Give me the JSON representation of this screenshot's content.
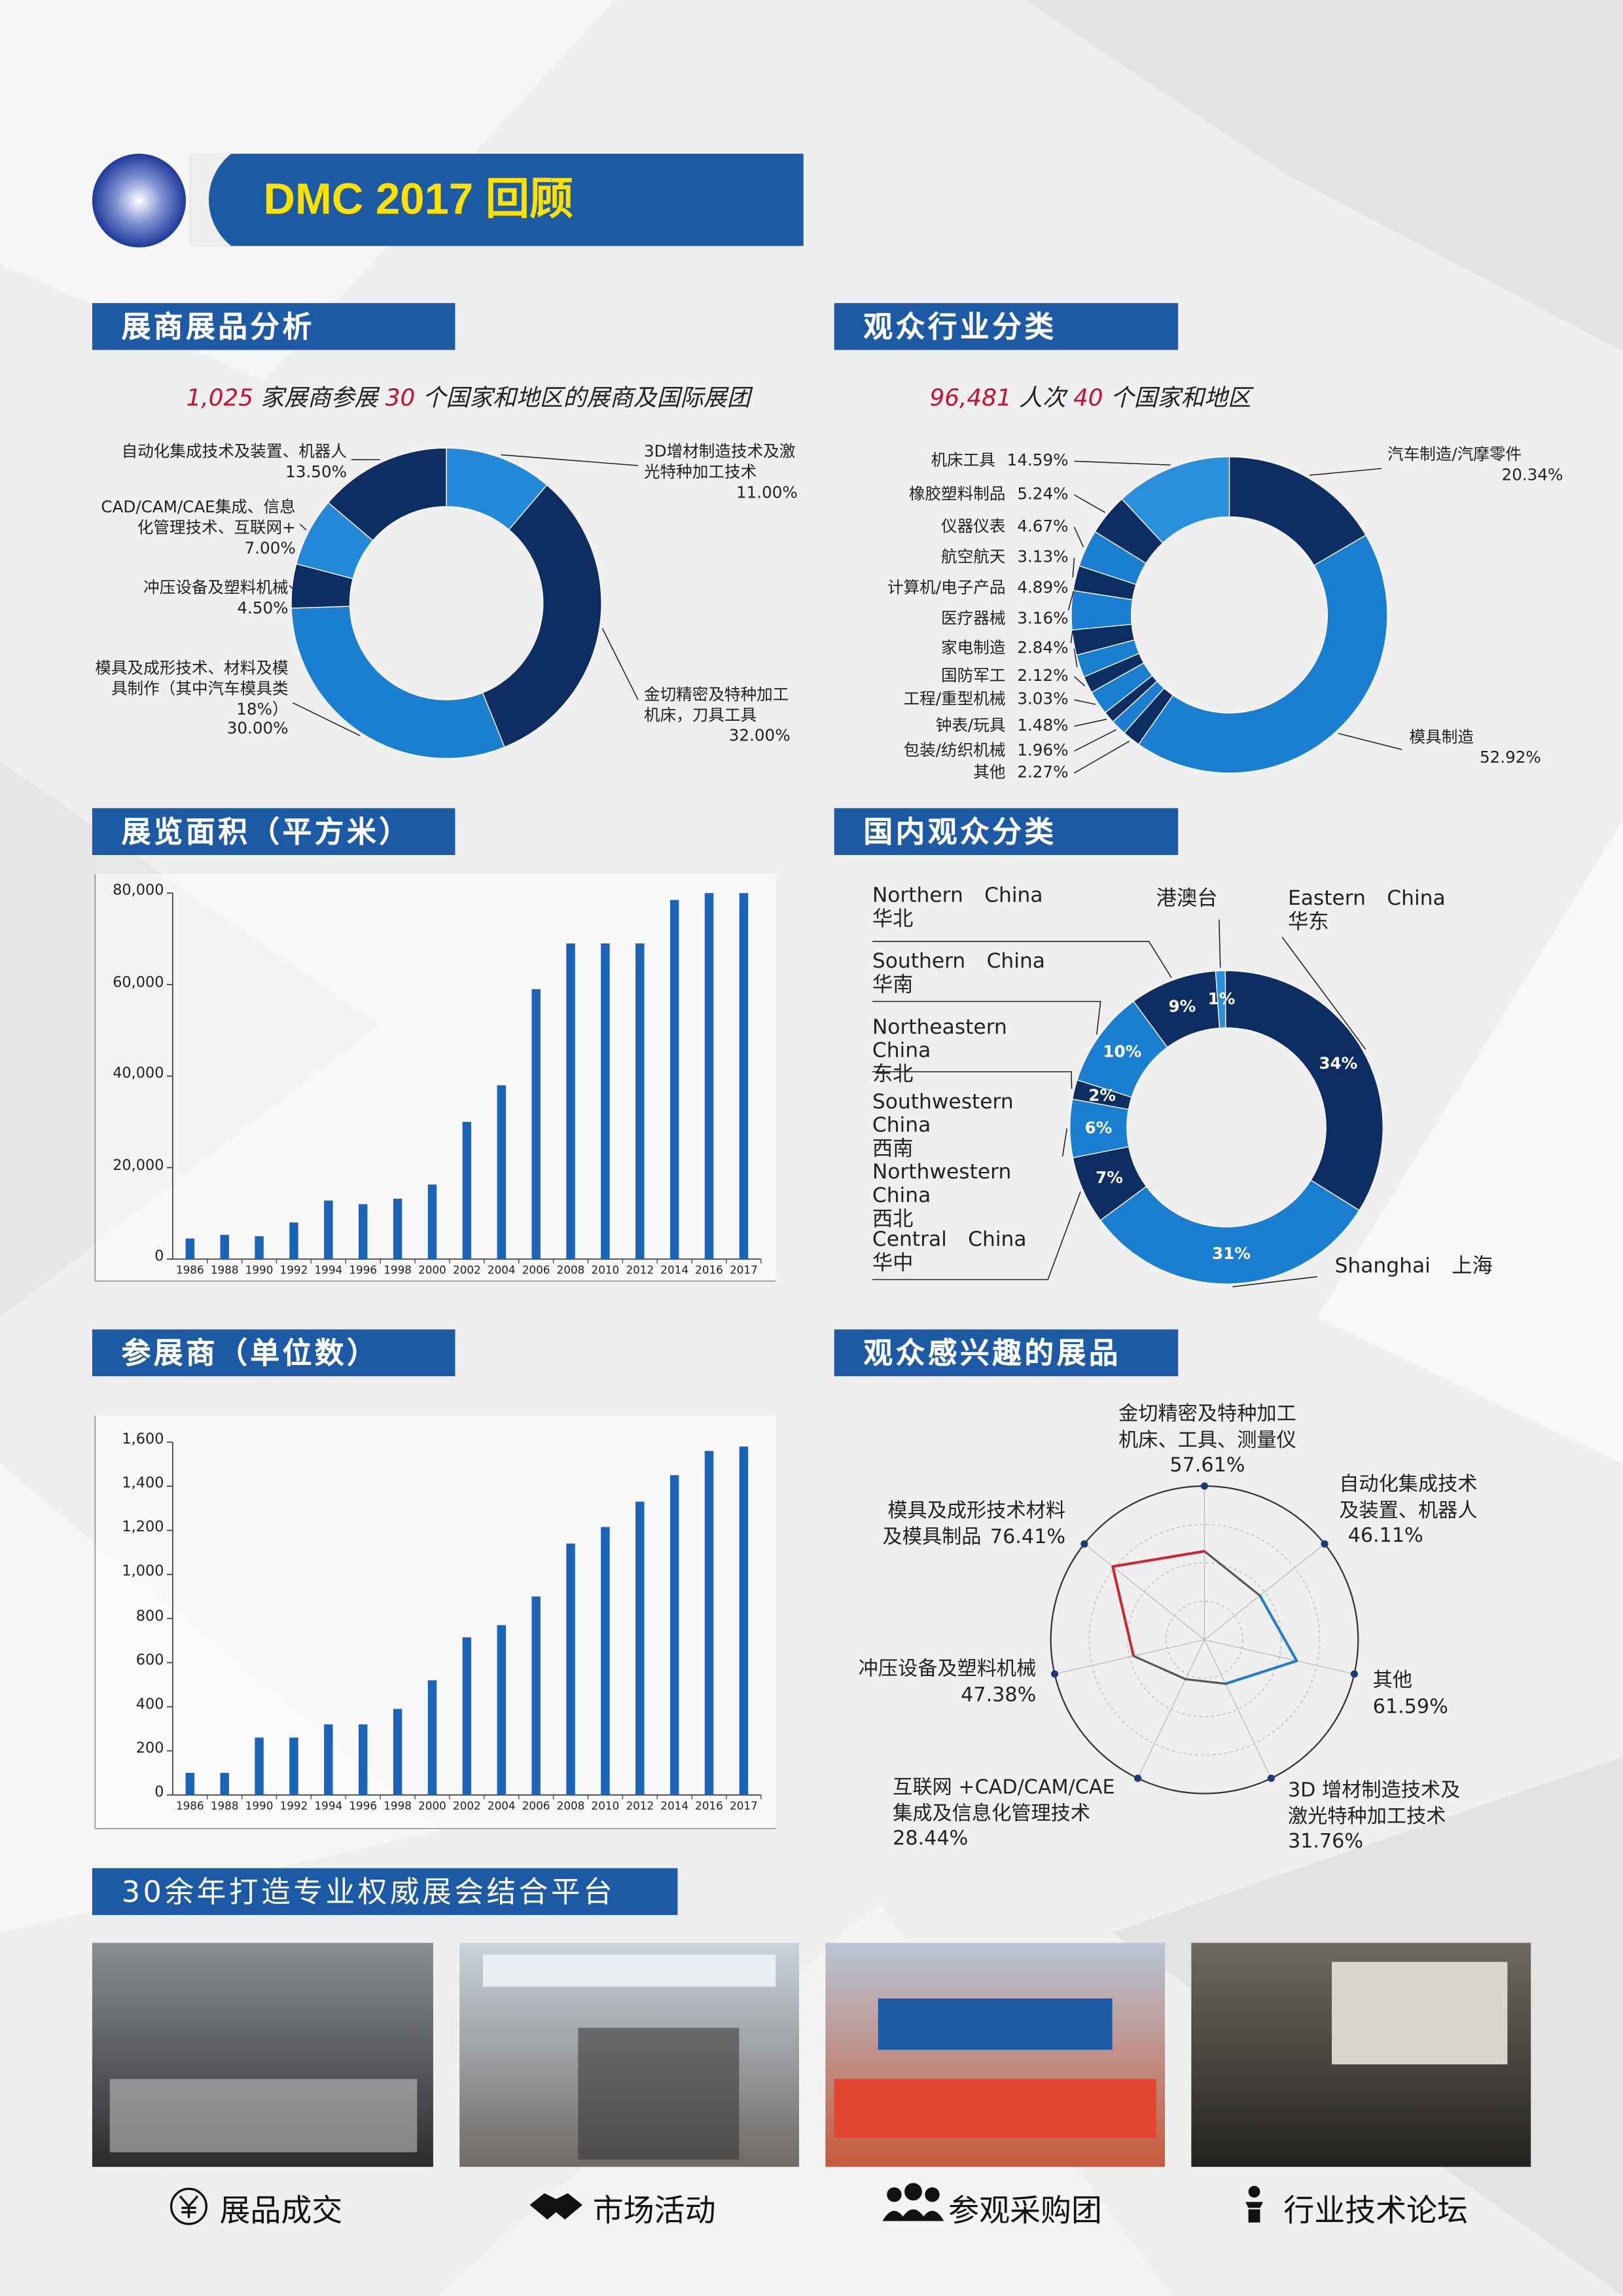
{
  "header": {
    "title": "DMC 2017 回顾"
  },
  "chart_data": [
    {
      "type": "donut",
      "title": "展商展品分析",
      "subtitle": [
        {
          "text": "1,025",
          "color": "#c8102e"
        },
        {
          "text": " 家展商参展 "
        },
        {
          "text": "30",
          "color": "#c8102e"
        },
        {
          "text": " 个国家和地区的展商及国际展团"
        }
      ],
      "categories": [
        "3D增材制造技术及激光特种加工技术",
        "金切精密及特种加工机床，刀具工具",
        "模具及成形技术、材料及模具制作（其中汽车模具类18%）",
        "冲压设备及塑料机械",
        "CAD/CAM/CAE集成、信息化管理技术、互联网+",
        "自动化集成技术及装置、机器人"
      ],
      "values": [
        11.0,
        32.0,
        30.0,
        4.5,
        7.0,
        13.5
      ],
      "value_labels": [
        "11.00%",
        "32.00%",
        "30.00%",
        "4.50%",
        "7.00%",
        "13.50%"
      ],
      "colors": [
        "#2388d8",
        "#0d2d63",
        "#1b7fd1",
        "#0d2d63",
        "#2388d8",
        "#0d2d63"
      ]
    },
    {
      "type": "donut",
      "title": "观众行业分类",
      "subtitle": [
        {
          "text": "96,481",
          "color": "#c8102e"
        },
        {
          "text": " 人次 "
        },
        {
          "text": "40",
          "color": "#c8102e"
        },
        {
          "text": " 个国家和地区"
        }
      ],
      "categories": [
        "汽车制造/汽摩零件",
        "模具制造",
        "其他",
        "包装/纺织机械",
        "钟表/玩具",
        "工程/重型机械",
        "国防军工",
        "家电制造",
        "医疗器械",
        "计算机/电子产品",
        "航空航天",
        "仪器仪表",
        "橡胶塑料制品",
        "机床工具"
      ],
      "values": [
        20.34,
        52.92,
        2.27,
        1.96,
        1.48,
        3.03,
        2.12,
        2.84,
        3.16,
        4.89,
        3.13,
        4.67,
        5.24,
        14.59
      ],
      "value_labels": [
        "20.34%",
        "52.92%",
        "2.27%",
        "1.96%",
        "1.48%",
        "3.03%",
        "2.12%",
        "2.84%",
        "3.16%",
        "4.89%",
        "3.13%",
        "4.67%",
        "5.24%",
        "14.59%"
      ],
      "colors": [
        "#0d2d63",
        "#1b7fd1",
        "#0d2d63",
        "#1b7fd1",
        "#0d2d63",
        "#1b7fd1",
        "#0d2d63",
        "#1b7fd1",
        "#0d2d63",
        "#1b7fd1",
        "#0d2d63",
        "#1b7fd1",
        "#0d2d63",
        "#2a8fdc"
      ]
    },
    {
      "type": "bar",
      "title": "展览面积（平方米）",
      "categories": [
        "1986",
        "1988",
        "1990",
        "1992",
        "1994",
        "1996",
        "1998",
        "2000",
        "2002",
        "2004",
        "2006",
        "2008",
        "2010",
        "2012",
        "2014",
        "2016",
        "2017"
      ],
      "values": [
        4500,
        5300,
        5000,
        8000,
        12800,
        12000,
        13200,
        16300,
        30000,
        38000,
        59000,
        69000,
        69000,
        69000,
        78500,
        80000,
        80000
      ],
      "color": "#1a63b8",
      "ylim": [
        0,
        80000
      ],
      "yticks": [
        0,
        {
          "value": 20000,
          "label": "20,000"
        },
        {
          "value": 40000,
          "label": "40,000"
        },
        {
          "value": 60000,
          "label": "60,000"
        },
        {
          "value": 80000,
          "label": "80,000"
        }
      ]
    },
    {
      "type": "donut",
      "title": "国内观众分类",
      "categories": [
        "港澳台",
        "Eastern China\n华东",
        "Shanghai 上海",
        "Central China\n华中",
        "Southwestern China\n西南\nNorthwestern China\n西北",
        "Northeastern China\n东北",
        "Southern China\n华南",
        "Northern China\n华北"
      ],
      "values": [
        1,
        34,
        31,
        7,
        6,
        2,
        10,
        9
      ],
      "value_labels": [
        "1%",
        "34%",
        "31%",
        "7%",
        "6%",
        "2%",
        "10%",
        "9%"
      ],
      "colors": [
        "#2a8fdc",
        "#0d2d63",
        "#1b7fd1",
        "#0d2d63",
        "#1b7fd1",
        "#0d2d63",
        "#1b7fd1",
        "#0d2d63"
      ]
    },
    {
      "type": "bar",
      "title": "参展商（单位数）",
      "categories": [
        "1986",
        "1988",
        "1990",
        "1992",
        "1994",
        "1996",
        "1998",
        "2000",
        "2002",
        "2004",
        "2006",
        "2008",
        "2010",
        "2012",
        "2014",
        "2016",
        "2017"
      ],
      "values": [
        100,
        100,
        260,
        260,
        320,
        320,
        390,
        520,
        715,
        770,
        900,
        1140,
        1215,
        1330,
        1450,
        1560,
        1580
      ],
      "color": "#1a63b8",
      "ylim": [
        0,
        1600
      ],
      "yticks": [
        0,
        200,
        400,
        600,
        800,
        {
          "value": 1000,
          "label": "1,000"
        },
        {
          "value": 1200,
          "label": "1,200"
        },
        {
          "value": 1400,
          "label": "1,400"
        },
        {
          "value": 1600,
          "label": "1,600"
        }
      ]
    },
    {
      "type": "radar",
      "title": "观众感兴趣的展品",
      "categories": [
        "金切精密及特种加工\n机床、工具、测量仪",
        "自动化集成技术\n及装置、机器人",
        "其他",
        "3D 增材制造技术及\n激光特种加工技术",
        "互联网 +CAD/CAM/CAE\n集成及信息化管理技术",
        "冲压设备及塑料机械",
        "模具及成形技术材料\n及模具制品"
      ],
      "values": [
        57.61,
        46.11,
        61.59,
        31.76,
        28.44,
        47.38,
        76.41
      ],
      "value_labels": [
        "57.61%",
        "46.11%",
        "61.59%",
        "31.76%",
        "28.44%",
        "47.38%",
        "76.41%"
      ],
      "rlim": [
        0,
        100
      ],
      "color": "#555555",
      "edge_colors": [
        "#555555",
        "#1e7bd0",
        "#1e7bd0",
        "#555555",
        "#555555",
        "#d0262c",
        "#d0262c"
      ]
    }
  ],
  "platform": {
    "title": "30余年打造专业权威展会结合平台",
    "captions": [
      "展品成交",
      "市场活动",
      "参观采购团",
      "行业技术论坛"
    ]
  }
}
